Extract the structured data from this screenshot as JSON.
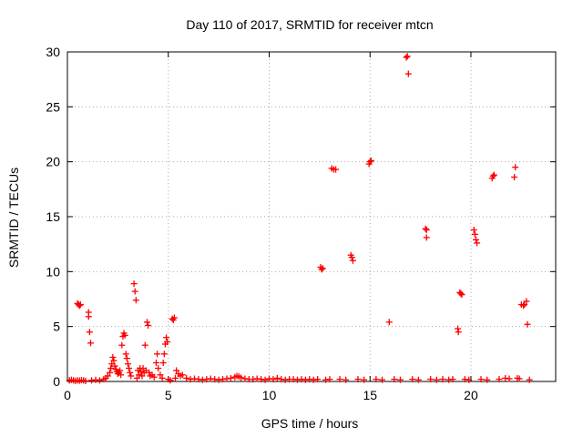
{
  "chart_data": {
    "type": "scatter",
    "title": "Day 110 of 2017, SRMTID for receiver mtcn",
    "xlabel": "GPS time / hours",
    "ylabel": "SRMTID / TECUs",
    "xlim": [
      0,
      24.2
    ],
    "ylim": [
      0,
      30
    ],
    "xticks": [
      0,
      5,
      10,
      15,
      20
    ],
    "yticks": [
      0,
      5,
      10,
      15,
      20,
      25,
      30
    ],
    "grid": true,
    "marker": "+",
    "color": "#ff0000",
    "series": [
      {
        "name": "SRMTID",
        "points": [
          [
            0.1,
            0.1
          ],
          [
            0.2,
            0.15
          ],
          [
            0.3,
            0.1
          ],
          [
            0.4,
            0.05
          ],
          [
            0.5,
            0.1
          ],
          [
            0.6,
            0.08
          ],
          [
            0.7,
            0.12
          ],
          [
            0.8,
            0.1
          ],
          [
            0.9,
            0.05
          ],
          [
            0.5,
            7.1
          ],
          [
            0.55,
            7.0
          ],
          [
            0.6,
            6.9
          ],
          [
            0.65,
            7.0
          ],
          [
            1.05,
            6.3
          ],
          [
            1.05,
            5.9
          ],
          [
            1.1,
            4.5
          ],
          [
            1.15,
            3.5
          ],
          [
            1.2,
            0.1
          ],
          [
            1.4,
            0.15
          ],
          [
            1.6,
            0.1
          ],
          [
            1.8,
            0.2
          ],
          [
            1.9,
            0.3
          ],
          [
            2.0,
            0.5
          ],
          [
            2.1,
            0.8
          ],
          [
            2.15,
            1.2
          ],
          [
            2.2,
            1.6
          ],
          [
            2.25,
            2.2
          ],
          [
            2.3,
            1.9
          ],
          [
            2.35,
            1.4
          ],
          [
            2.4,
            1.1
          ],
          [
            2.45,
            0.9
          ],
          [
            2.5,
            0.7
          ],
          [
            2.55,
            0.8
          ],
          [
            2.6,
            1.0
          ],
          [
            2.65,
            0.6
          ],
          [
            2.7,
            3.3
          ],
          [
            2.75,
            4.1
          ],
          [
            2.8,
            4.4
          ],
          [
            2.85,
            4.2
          ],
          [
            2.9,
            2.5
          ],
          [
            2.95,
            2.1
          ],
          [
            3.0,
            1.6
          ],
          [
            3.05,
            1.2
          ],
          [
            3.1,
            0.8
          ],
          [
            3.15,
            0.5
          ],
          [
            3.3,
            8.9
          ],
          [
            3.35,
            8.2
          ],
          [
            3.4,
            7.4
          ],
          [
            3.45,
            0.3
          ],
          [
            3.5,
            1.0
          ],
          [
            3.55,
            0.6
          ],
          [
            3.6,
            1.2
          ],
          [
            3.65,
            0.9
          ],
          [
            3.7,
            0.5
          ],
          [
            3.75,
            1.2
          ],
          [
            3.8,
            0.8
          ],
          [
            3.85,
            3.3
          ],
          [
            3.9,
            1.0
          ],
          [
            3.95,
            5.4
          ],
          [
            4.0,
            5.1
          ],
          [
            4.05,
            0.8
          ],
          [
            4.1,
            0.5
          ],
          [
            4.2,
            0.6
          ],
          [
            4.3,
            0.4
          ],
          [
            4.4,
            1.7
          ],
          [
            4.45,
            2.5
          ],
          [
            4.5,
            1.2
          ],
          [
            4.6,
            0.6
          ],
          [
            4.7,
            0.3
          ],
          [
            4.75,
            1.7
          ],
          [
            4.8,
            2.5
          ],
          [
            4.85,
            3.4
          ],
          [
            4.9,
            4.0
          ],
          [
            4.95,
            3.6
          ],
          [
            5.0,
            0.2
          ],
          [
            5.1,
            0.1
          ],
          [
            5.2,
            5.7
          ],
          [
            5.25,
            5.6
          ],
          [
            5.3,
            5.8
          ],
          [
            5.35,
            0.3
          ],
          [
            5.4,
            1.0
          ],
          [
            5.5,
            0.7
          ],
          [
            5.6,
            0.5
          ],
          [
            5.7,
            0.6
          ],
          [
            5.9,
            0.3
          ],
          [
            6.1,
            0.2
          ],
          [
            6.3,
            0.25
          ],
          [
            6.5,
            0.2
          ],
          [
            6.7,
            0.15
          ],
          [
            6.9,
            0.2
          ],
          [
            7.1,
            0.25
          ],
          [
            7.3,
            0.2
          ],
          [
            7.5,
            0.15
          ],
          [
            7.7,
            0.2
          ],
          [
            7.9,
            0.25
          ],
          [
            8.1,
            0.3
          ],
          [
            8.3,
            0.4
          ],
          [
            8.4,
            0.5
          ],
          [
            8.5,
            0.45
          ],
          [
            8.6,
            0.35
          ],
          [
            8.8,
            0.25
          ],
          [
            9.0,
            0.2
          ],
          [
            9.2,
            0.2
          ],
          [
            9.4,
            0.25
          ],
          [
            9.6,
            0.2
          ],
          [
            9.8,
            0.15
          ],
          [
            10.0,
            0.25
          ],
          [
            10.2,
            0.2
          ],
          [
            10.4,
            0.3
          ],
          [
            10.6,
            0.2
          ],
          [
            10.8,
            0.15
          ],
          [
            11.0,
            0.2
          ],
          [
            11.2,
            0.2
          ],
          [
            11.4,
            0.15
          ],
          [
            11.6,
            0.2
          ],
          [
            11.8,
            0.15
          ],
          [
            12.0,
            0.2
          ],
          [
            12.2,
            0.15
          ],
          [
            12.4,
            0.2
          ],
          [
            12.55,
            10.4
          ],
          [
            12.6,
            10.2
          ],
          [
            12.65,
            10.3
          ],
          [
            12.8,
            0.15
          ],
          [
            13.0,
            0.2
          ],
          [
            13.1,
            19.4
          ],
          [
            13.2,
            19.3
          ],
          [
            13.3,
            19.3
          ],
          [
            13.5,
            0.2
          ],
          [
            13.8,
            0.15
          ],
          [
            14.05,
            11.5
          ],
          [
            14.1,
            11.3
          ],
          [
            14.15,
            11.0
          ],
          [
            14.4,
            0.2
          ],
          [
            14.7,
            0.15
          ],
          [
            14.95,
            19.8
          ],
          [
            15.0,
            20.0
          ],
          [
            15.05,
            20.1
          ],
          [
            15.3,
            0.2
          ],
          [
            15.6,
            0.15
          ],
          [
            15.95,
            5.4
          ],
          [
            16.2,
            0.2
          ],
          [
            16.5,
            0.15
          ],
          [
            16.8,
            29.5
          ],
          [
            16.85,
            29.6
          ],
          [
            16.9,
            28.0
          ],
          [
            17.1,
            0.2
          ],
          [
            17.4,
            0.15
          ],
          [
            17.75,
            13.9
          ],
          [
            17.8,
            13.8
          ],
          [
            17.8,
            13.1
          ],
          [
            18.0,
            0.2
          ],
          [
            18.3,
            0.15
          ],
          [
            18.6,
            0.2
          ],
          [
            18.9,
            0.15
          ],
          [
            19.1,
            0.2
          ],
          [
            19.35,
            4.8
          ],
          [
            19.38,
            4.5
          ],
          [
            19.45,
            8.1
          ],
          [
            19.5,
            8.0
          ],
          [
            19.55,
            7.9
          ],
          [
            19.7,
            0.2
          ],
          [
            19.9,
            0.15
          ],
          [
            20.15,
            13.8
          ],
          [
            20.2,
            13.4
          ],
          [
            20.25,
            12.9
          ],
          [
            20.3,
            12.6
          ],
          [
            20.5,
            0.2
          ],
          [
            20.8,
            0.15
          ],
          [
            21.05,
            18.5
          ],
          [
            21.1,
            18.7
          ],
          [
            21.15,
            18.8
          ],
          [
            21.4,
            0.2
          ],
          [
            21.7,
            0.3
          ],
          [
            21.9,
            0.25
          ],
          [
            22.15,
            18.6
          ],
          [
            22.2,
            19.5
          ],
          [
            22.3,
            0.3
          ],
          [
            22.4,
            0.25
          ],
          [
            22.5,
            7.0
          ],
          [
            22.6,
            6.9
          ],
          [
            22.65,
            7.0
          ],
          [
            22.75,
            7.3
          ],
          [
            22.8,
            5.2
          ],
          [
            22.9,
            0.15
          ]
        ]
      }
    ]
  }
}
